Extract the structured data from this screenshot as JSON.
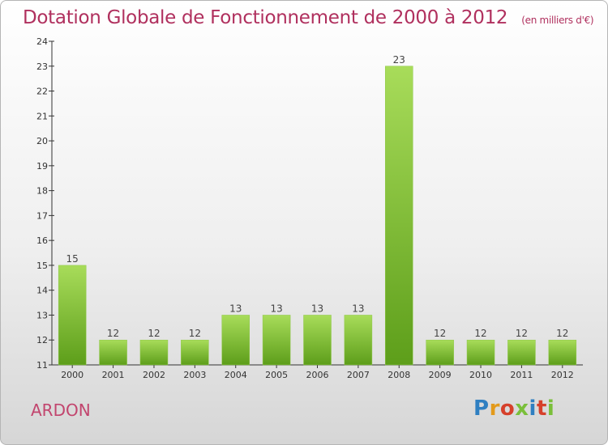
{
  "header": {
    "title": "Dotation Globale de Fonctionnement de 2000 à 2012",
    "unit": "(en milliers d'€)"
  },
  "footer": {
    "commune": "ARDON",
    "logo": "Proxiti",
    "logo_colors": [
      "#2f7fc1",
      "#e39a1b",
      "#d6402b",
      "#7abf3a",
      "#2f7fc1",
      "#d6402b",
      "#7abf3a"
    ]
  },
  "colors": {
    "title": "#b0305e",
    "bar_top": "#a8dc5a",
    "bar_bottom": "#5d9e1a",
    "axis": "#333333"
  },
  "chart_data": {
    "type": "bar",
    "title": "Dotation Globale de Fonctionnement de 2000 à 2012",
    "subtitle": "(en milliers d'€)",
    "categories": [
      "2000",
      "2001",
      "2002",
      "2003",
      "2004",
      "2005",
      "2006",
      "2007",
      "2008",
      "2009",
      "2010",
      "2011",
      "2012"
    ],
    "values": [
      15,
      12,
      12,
      12,
      13,
      13,
      13,
      13,
      23,
      12,
      12,
      12,
      12
    ],
    "ylim": [
      11,
      24
    ],
    "yticks": [
      11,
      12,
      13,
      14,
      15,
      16,
      17,
      18,
      19,
      20,
      21,
      22,
      23,
      24
    ],
    "xlabel": "",
    "ylabel": "",
    "grid": false,
    "legend": "none"
  }
}
